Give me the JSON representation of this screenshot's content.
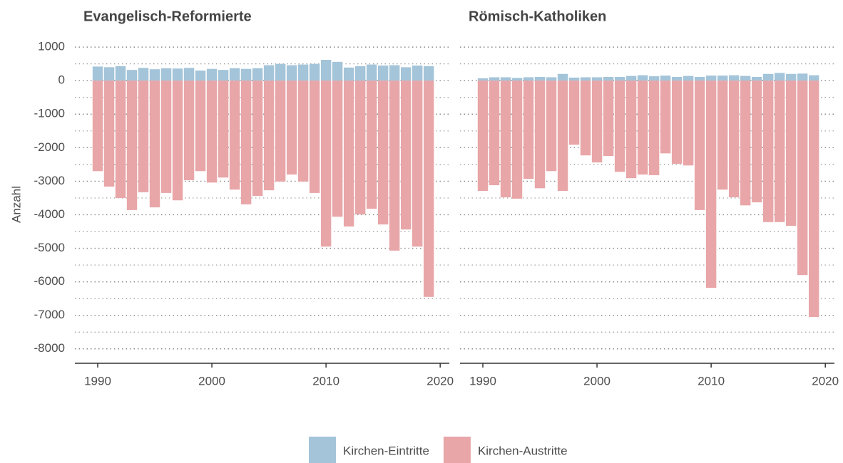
{
  "chart_data": [
    {
      "type": "bar",
      "title": "Evangelisch-Reformierte",
      "ylabel": "Anzahl",
      "x": [
        1990,
        1991,
        1992,
        1993,
        1994,
        1995,
        1996,
        1997,
        1998,
        1999,
        2000,
        2001,
        2002,
        2003,
        2004,
        2005,
        2006,
        2007,
        2008,
        2009,
        2010,
        2011,
        2012,
        2013,
        2014,
        2015,
        2016,
        2017,
        2018,
        2019
      ],
      "series": [
        {
          "name": "Kirchen-Eintritte",
          "color": "#a3c4d9",
          "values": [
            420,
            400,
            430,
            320,
            380,
            340,
            370,
            360,
            380,
            300,
            350,
            320,
            370,
            350,
            370,
            460,
            500,
            460,
            480,
            500,
            620,
            560,
            390,
            430,
            480,
            450,
            460,
            400,
            450,
            430
          ]
        },
        {
          "name": "Kirchen-Austritte",
          "color": "#e8a6a8",
          "values": [
            -2700,
            -3160,
            -3500,
            -3860,
            -3330,
            -3780,
            -3350,
            -3570,
            -2970,
            -2700,
            -3040,
            -2890,
            -3250,
            -3690,
            -3440,
            -3270,
            -3010,
            -2800,
            -3010,
            -3350,
            -4950,
            -4060,
            -4350,
            -3990,
            -3820,
            -4290,
            -5070,
            -4440,
            -4950,
            -6450
          ]
        }
      ],
      "xlim": [
        1988,
        2020.8
      ],
      "xticks": [
        1990,
        2000,
        2010,
        2020
      ],
      "ylim": [
        -8430,
        1130
      ],
      "yticks": [
        1000,
        0,
        -1000,
        -2000,
        -3000,
        -4000,
        -5000,
        -6000,
        -7000,
        -8000
      ],
      "yminorticks": [
        500,
        -500,
        -1500,
        -2500,
        -3500,
        -4500,
        -5500,
        -6500,
        -7500
      ],
      "grid": true
    },
    {
      "type": "bar",
      "title": "Römisch-Katholiken",
      "x": [
        1990,
        1991,
        1992,
        1993,
        1994,
        1995,
        1996,
        1997,
        1998,
        1999,
        2000,
        2001,
        2002,
        2003,
        2004,
        2005,
        2006,
        2007,
        2008,
        2009,
        2010,
        2011,
        2012,
        2013,
        2014,
        2015,
        2016,
        2017,
        2018,
        2019
      ],
      "series": [
        {
          "name": "Kirchen-Eintritte",
          "color": "#a3c4d9",
          "values": [
            70,
            100,
            100,
            80,
            100,
            110,
            100,
            200,
            90,
            100,
            100,
            110,
            110,
            140,
            160,
            130,
            150,
            110,
            140,
            110,
            150,
            150,
            160,
            140,
            110,
            200,
            230,
            200,
            210,
            160
          ]
        },
        {
          "name": "Kirchen-Austritte",
          "color": "#e8a6a8",
          "values": [
            -3290,
            -3120,
            -3480,
            -3520,
            -2930,
            -3210,
            -2700,
            -3290,
            -1910,
            -2230,
            -2440,
            -2250,
            -2720,
            -2910,
            -2800,
            -2820,
            -2170,
            -2480,
            -2530,
            -3860,
            -6180,
            -3250,
            -3480,
            -3720,
            -3630,
            -4220,
            -4220,
            -4330,
            -5800,
            -7050
          ]
        }
      ],
      "xlim": [
        1988,
        2020.8
      ],
      "xticks": [
        1990,
        2000,
        2010,
        2020
      ],
      "ylim": [
        -8430,
        1130
      ],
      "yticks": [
        1000,
        0,
        -1000,
        -2000,
        -3000,
        -4000,
        -5000,
        -6000,
        -7000,
        -8000
      ],
      "yminorticks": [
        500,
        -500,
        -1500,
        -2500,
        -3500,
        -4500,
        -5500,
        -6500,
        -7500
      ],
      "grid": true
    }
  ]
}
